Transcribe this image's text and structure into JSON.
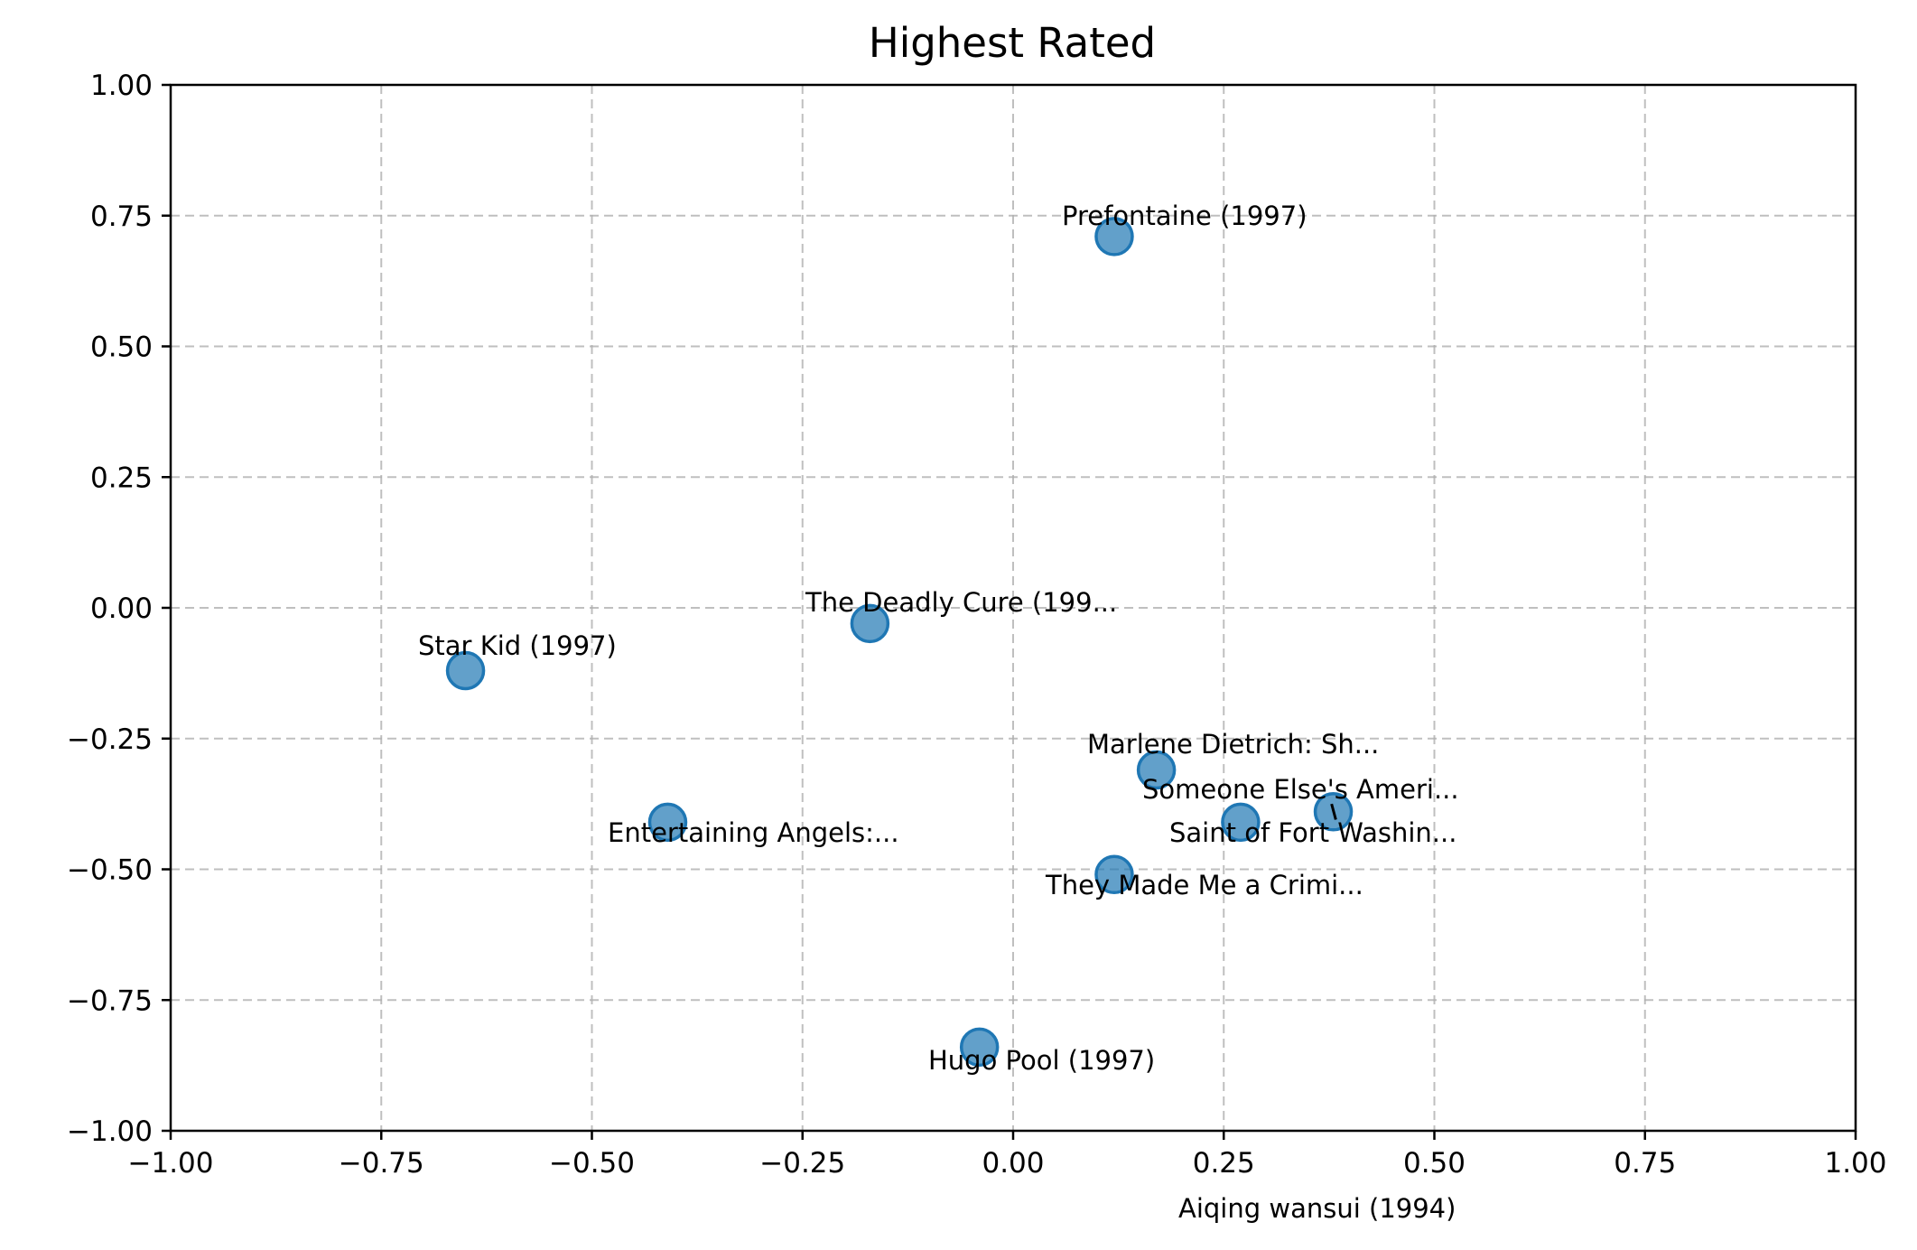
{
  "chart_data": {
    "type": "scatter",
    "title": "Highest Rated",
    "xlabel": "",
    "ylabel": "",
    "xlim": [
      -1.0,
      1.0
    ],
    "ylim": [
      -1.0,
      1.0
    ],
    "xticks": [
      "−1.00",
      "−0.75",
      "−0.50",
      "−0.25",
      "0.00",
      "0.25",
      "0.50",
      "0.75",
      "1.00"
    ],
    "yticks": [
      "1.00",
      "0.75",
      "0.50",
      "0.25",
      "0.00",
      "−0.25",
      "−0.50",
      "−0.75",
      "−1.00"
    ],
    "grid": true,
    "color": "#1f77b4",
    "points": [
      {
        "label": "Prefontaine (1997)",
        "x": 0.12,
        "y": 0.71
      },
      {
        "label": "The Deadly Cure (199...",
        "x": -0.17,
        "y": -0.03
      },
      {
        "label": "Star Kid (1997)",
        "x": -0.65,
        "y": -0.12
      },
      {
        "label": "Marlene Dietrich: Sh...",
        "x": 0.17,
        "y": -0.31
      },
      {
        "label": "Someone Else's Ameri...",
        "x": 0.38,
        "y": -0.39
      },
      {
        "label": "Saint of Fort Washin...",
        "x": 0.27,
        "y": -0.41
      },
      {
        "label": "Entertaining Angels:...",
        "x": -0.41,
        "y": -0.41
      },
      {
        "label": "They Made Me a Crimi...",
        "x": 0.12,
        "y": -0.51
      },
      {
        "label": "Hugo Pool (1997)",
        "x": -0.04,
        "y": -0.84
      },
      {
        "label": "Aiqing wansui (1994)",
        "x": 0.38,
        "y": -0.395
      }
    ]
  }
}
